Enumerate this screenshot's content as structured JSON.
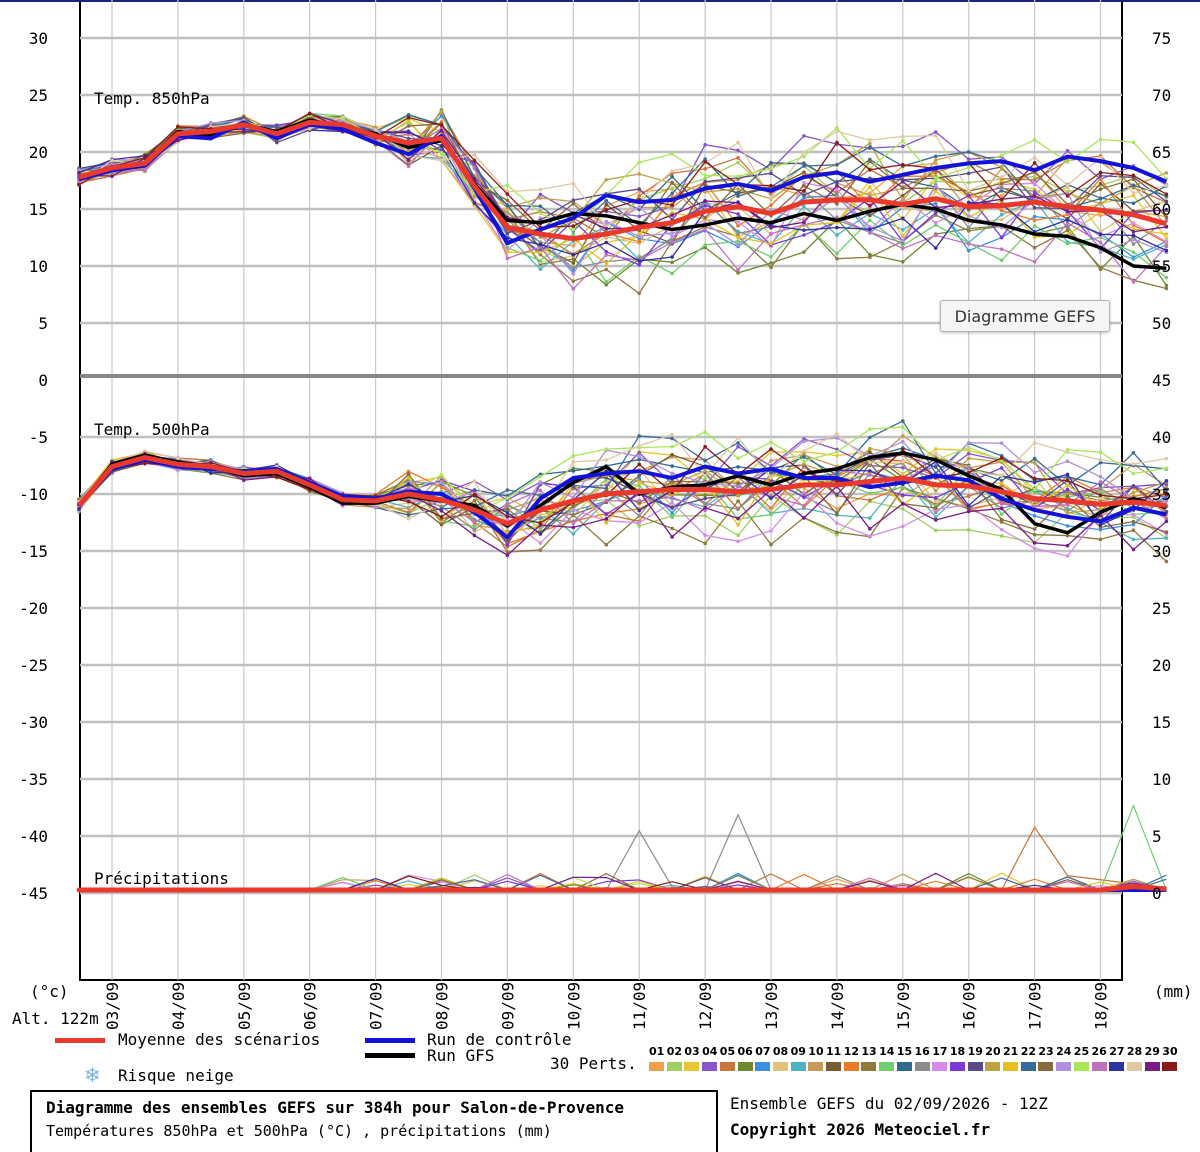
{
  "chart_data": {
    "type": "line",
    "title": "Diagramme des ensembles GEFS sur 384h pour Salon-de-Provence",
    "subtitle": "Températures 850hPa et 500hPa (°C) , précipitations (mm)",
    "run_info": "Ensemble GEFS du 02/09/2026 - 12Z",
    "copyright": "Copyright 2026 Meteociel.fr",
    "tooltip": "Diagramme GEFS",
    "left_unit": "(°c)",
    "right_unit": "(mm)",
    "altitude": "Alt. 122m",
    "left_axis": {
      "ticks": [
        "30",
        "25",
        "20",
        "15",
        "10",
        "5",
        "0",
        "-5",
        "-10",
        "-15",
        "-20",
        "-25",
        "-30",
        "-35",
        "-40",
        "-45"
      ],
      "values": [
        30,
        25,
        20,
        15,
        10,
        5,
        0,
        -5,
        -10,
        -15,
        -20,
        -25,
        -30,
        -35,
        -40,
        -45
      ]
    },
    "right_axis": {
      "ticks": [
        "75",
        "70",
        "65",
        "60",
        "55",
        "50",
        "45",
        "40",
        "35",
        "30",
        "25",
        "20",
        "15",
        "10",
        "5",
        "0"
      ],
      "values": [
        75,
        70,
        65,
        60,
        55,
        50,
        45,
        40,
        35,
        30,
        25,
        20,
        15,
        10,
        5,
        0
      ]
    },
    "x_dates": [
      "03/09",
      "04/09",
      "05/09",
      "06/09",
      "07/09",
      "08/09",
      "09/09",
      "10/09",
      "11/09",
      "12/09",
      "13/09",
      "14/09",
      "15/09",
      "16/09",
      "17/09",
      "18/09"
    ],
    "grid": true,
    "panels": [
      {
        "label": "Temp. 850hPa",
        "unit": "°C",
        "ylim": [
          0,
          32
        ]
      },
      {
        "label": "Temp. 500hPa",
        "unit": "°C",
        "ylim": [
          -45,
          0
        ]
      },
      {
        "label": "Précipitations",
        "unit": "mm",
        "ylim": [
          0,
          8
        ]
      }
    ],
    "days": [
      2.5,
      3,
      3.5,
      4,
      4.5,
      5,
      5.5,
      6,
      6.5,
      7,
      7.5,
      8,
      8.5,
      9,
      9.5,
      10,
      10.5,
      11,
      11.5,
      12,
      12.5,
      13,
      13.5,
      14,
      14.5,
      15,
      15.5,
      16,
      16.5,
      17,
      17.5,
      18,
      18.5,
      19
    ],
    "series": [
      {
        "name": "Moyenne des scénarios",
        "role": "mean",
        "color": "#e8392c",
        "t850": [
          17.8,
          18.6,
          19.0,
          21.6,
          21.8,
          22.4,
          21.6,
          22.6,
          22.4,
          21.4,
          20.8,
          21.2,
          17.0,
          13.4,
          12.8,
          12.4,
          12.8,
          13.4,
          13.8,
          14.8,
          15.2,
          14.6,
          15.6,
          15.8,
          15.8,
          15.4,
          15.9,
          15.2,
          15.3,
          15.6,
          15.2,
          14.9,
          14.5,
          13.7
        ],
        "t500": [
          -11,
          -7.6,
          -6.8,
          -7.4,
          -7.6,
          -8.2,
          -8.0,
          -9.2,
          -10.5,
          -10.6,
          -10.0,
          -10.5,
          -11.4,
          -12.6,
          -11.4,
          -10.6,
          -10.0,
          -9.8,
          -9.6,
          -9.6,
          -9.8,
          -9.6,
          -9.2,
          -9.2,
          -8.9,
          -8.6,
          -9.2,
          -9.3,
          -9.8,
          -10.4,
          -10.6,
          -10.9,
          -10.7,
          -11.0
        ],
        "precip": [
          0,
          0,
          0,
          0,
          0,
          0,
          0,
          0,
          0,
          0,
          0,
          0,
          0,
          0,
          0,
          0,
          0,
          0,
          0,
          0,
          0,
          0,
          0,
          0,
          0,
          0,
          0,
          0,
          0,
          0,
          0,
          0,
          0.3,
          0.1
        ]
      },
      {
        "name": "Run de contrôle",
        "role": "control",
        "color": "#1212d8",
        "t850": [
          17.6,
          18.4,
          18.8,
          21.4,
          21.2,
          22.6,
          21.2,
          22.4,
          22.0,
          20.8,
          19.8,
          21.4,
          16.8,
          12.0,
          13.2,
          14.2,
          16.2,
          15.6,
          15.8,
          16.8,
          17.2,
          16.6,
          17.8,
          18.2,
          17.4,
          18.0,
          18.6,
          19.0,
          19.2,
          18.4,
          19.6,
          19.2,
          18.6,
          17.4
        ],
        "t500": [
          -11,
          -7.8,
          -7.0,
          -7.6,
          -7.8,
          -8.0,
          -7.8,
          -9.0,
          -10.2,
          -10.4,
          -9.8,
          -10.0,
          -11.6,
          -13.8,
          -10.4,
          -8.6,
          -8.2,
          -8.0,
          -8.6,
          -7.6,
          -8.2,
          -7.8,
          -8.6,
          -8.6,
          -9.4,
          -9.0,
          -8.4,
          -8.8,
          -10.4,
          -11.4,
          -12.0,
          -12.4,
          -11.2,
          -11.8
        ],
        "precip": [
          0,
          0,
          0,
          0,
          0,
          0,
          0,
          0,
          0,
          0,
          0,
          0,
          0.1,
          0,
          0,
          0,
          0,
          0,
          0,
          0,
          0,
          0,
          0,
          0,
          0,
          0,
          0,
          0,
          0,
          0,
          0,
          0,
          0,
          0
        ]
      },
      {
        "name": "Run GFS",
        "role": "gfs",
        "color": "#000000",
        "t850": [
          17.6,
          18.4,
          19.0,
          21.8,
          21.4,
          22.4,
          21.8,
          22.8,
          22.2,
          21.6,
          20.4,
          21.0,
          17.2,
          14.0,
          13.8,
          14.6,
          14.4,
          13.8,
          13.2,
          13.6,
          14.2,
          13.8,
          14.6,
          14.0,
          14.8,
          15.4,
          15.0,
          14.0,
          13.6,
          12.8,
          12.6,
          11.6,
          10.0,
          9.8
        ],
        "t500": [
          -11,
          -7.4,
          -6.6,
          -7.2,
          -7.6,
          -8.4,
          -8.2,
          -9.4,
          -10.8,
          -10.8,
          -10.2,
          -10.6,
          -11.0,
          -12.8,
          -11.0,
          -9.0,
          -7.6,
          -10.0,
          -9.4,
          -9.2,
          -8.4,
          -9.2,
          -8.2,
          -7.8,
          -6.8,
          -6.4,
          -7.0,
          -8.4,
          -9.6,
          -12.6,
          -13.4,
          -11.6,
          -10.4,
          -11.2
        ],
        "precip": [
          0,
          0,
          0,
          0,
          0,
          0,
          0,
          0,
          0,
          0,
          0,
          0,
          0,
          0,
          0,
          0,
          0,
          0,
          0,
          0,
          0,
          0,
          0,
          0,
          0,
          0,
          0,
          0,
          0,
          0,
          0,
          0,
          0,
          0
        ]
      }
    ],
    "perturbations_label": "30 Perts.",
    "perturbation_colors": [
      "#f0a04b",
      "#9ed060",
      "#e8c532",
      "#8855cc",
      "#c8743a",
      "#6e8a2e",
      "#3b90e0",
      "#e0c27a",
      "#4fb3c6",
      "#c89a5a",
      "#7a5a30",
      "#e87a2a",
      "#8f7a3c",
      "#6fcf6f",
      "#2d6a8e",
      "#8c8c8c",
      "#d58be8",
      "#7a3ad8",
      "#5a4a8a",
      "#c0a040",
      "#e6c020",
      "#3a6a9a",
      "#8a6a3a",
      "#b090e0",
      "#a8e858",
      "#c070c0",
      "#3030a0",
      "#e0c8a0",
      "#7a1a8a",
      "#8a1a1a"
    ],
    "perturbation_numbers": [
      "01",
      "02",
      "03",
      "04",
      "05",
      "06",
      "07",
      "08",
      "09",
      "10",
      "11",
      "12",
      "13",
      "14",
      "15",
      "16",
      "17",
      "18",
      "19",
      "20",
      "21",
      "22",
      "23",
      "24",
      "25",
      "26",
      "27",
      "28",
      "29",
      "30"
    ],
    "legend": {
      "mean": "Moyenne des scénarios",
      "control": "Run de contrôle",
      "gfs": "Run GFS",
      "snow": "Risque neige"
    }
  }
}
